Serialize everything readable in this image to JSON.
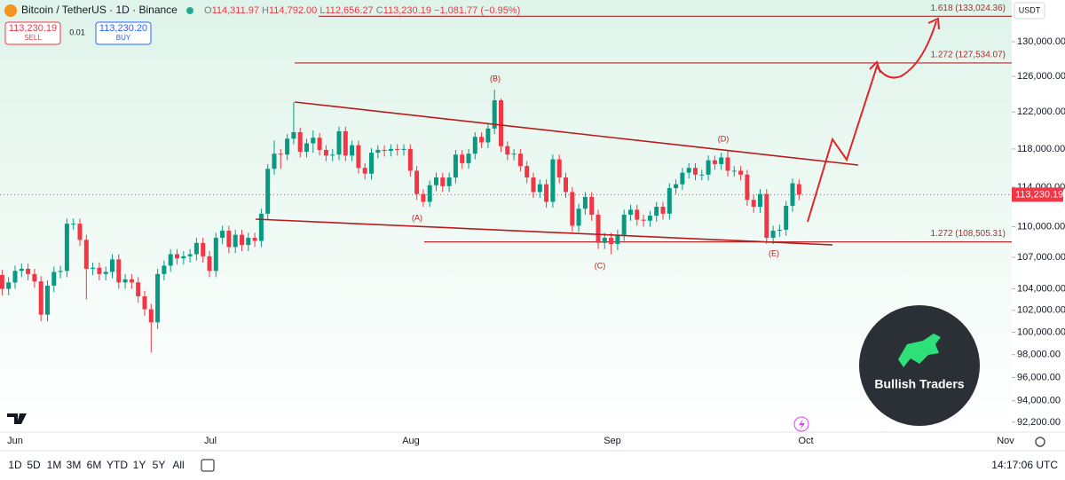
{
  "header": {
    "symbol": "Bitcoin / TetherUS · 1D · Binance",
    "ohlc": [
      [
        "O",
        "114,311.97"
      ],
      [
        "H",
        "114,792.00"
      ],
      [
        "L",
        "112,656.27"
      ],
      [
        "C",
        "113,230.19"
      ]
    ],
    "change": "−1,081.77 (−0.95%)"
  },
  "trade": {
    "sell_price": "113,230.19",
    "sell": "SELL",
    "spread": "0.01",
    "buy_price": "113,230.20",
    "buy": "BUY"
  },
  "chart_data": {
    "type": "candlestick",
    "log_scale": true,
    "colors": {
      "up": "#089981",
      "down": "#f23645"
    },
    "open": [
      105300,
      104000,
      104600,
      105700,
      105900,
      105400,
      104700,
      101600,
      104300,
      105600,
      105700,
      110300,
      110300,
      108700,
      105900,
      106000,
      105400,
      105600,
      106800,
      104600,
      104900,
      104600,
      103300,
      102100,
      100900,
      105400,
      106200,
      107300,
      106900,
      107100,
      107300,
      108400,
      107100,
      105700,
      108900,
      109600,
      108000,
      109200,
      108200,
      108900,
      108600,
      111300,
      115900,
      117500,
      117400,
      119100,
      119800,
      117700,
      118600,
      119200,
      117900,
      117300,
      117400,
      119900,
      117300,
      118400,
      116000,
      115400,
      117600,
      117900,
      117800,
      118000,
      117900,
      118000,
      115700,
      113300,
      112500,
      114200,
      115000,
      114100,
      115000,
      117400,
      116500,
      117500,
      119300,
      118700,
      120200,
      123300,
      118300,
      117400,
      117500,
      116200,
      115000,
      113500,
      114300,
      112500,
      116900,
      115000,
      113500,
      110100,
      111800,
      113000,
      111200,
      108400,
      108900,
      108300,
      109200,
      111200,
      111700,
      110700,
      110600,
      111100,
      112000,
      111300,
      113900,
      114300,
      115500,
      116000,
      115300,
      115300,
      116800,
      116400,
      117100,
      115700,
      115700,
      115300,
      112700,
      112000,
      113300,
      108900,
      109600,
      109700,
      112100,
      114311.97
    ],
    "high": [
      105800,
      105100,
      106200,
      106400,
      106400,
      105900,
      105200,
      104800,
      106100,
      106200,
      110800,
      110800,
      110800,
      109200,
      106500,
      106500,
      106100,
      107300,
      107300,
      105400,
      105400,
      105100,
      103800,
      102600,
      105900,
      106700,
      107800,
      107800,
      107600,
      107800,
      108900,
      108900,
      107600,
      109400,
      110100,
      110100,
      109700,
      109700,
      109400,
      109400,
      111800,
      116400,
      118900,
      118000,
      119600,
      123100,
      120300,
      119100,
      120000,
      119700,
      118400,
      118000,
      120400,
      120400,
      118900,
      118900,
      116500,
      118100,
      118400,
      118400,
      118500,
      118500,
      118500,
      118500,
      116200,
      113800,
      114700,
      115500,
      115500,
      115500,
      117900,
      117900,
      118000,
      119800,
      119800,
      120700,
      124500,
      123500,
      118800,
      118000,
      118000,
      116700,
      115500,
      114800,
      114800,
      117400,
      117400,
      115500,
      114000,
      112300,
      113500,
      113500,
      111700,
      109400,
      109400,
      109700,
      111700,
      112200,
      112200,
      111200,
      111600,
      112500,
      112500,
      114400,
      114800,
      116000,
      116500,
      116500,
      115800,
      117300,
      117300,
      117600,
      117900,
      116200,
      116200,
      115800,
      113200,
      113800,
      113800,
      110100,
      110200,
      112600,
      114900,
      114792
    ],
    "low": [
      103400,
      103400,
      104000,
      105100,
      104800,
      104100,
      101000,
      101000,
      103700,
      105000,
      105100,
      109700,
      108100,
      103000,
      105300,
      104800,
      104800,
      105000,
      104000,
      104000,
      104000,
      102700,
      101500,
      98200,
      100300,
      104800,
      105600,
      106300,
      106300,
      106500,
      106700,
      106500,
      105100,
      105100,
      108300,
      107400,
      107400,
      107600,
      107600,
      108000,
      108000,
      110700,
      115300,
      115900,
      116800,
      118500,
      117100,
      117100,
      117600,
      117300,
      116700,
      116700,
      116800,
      116700,
      116700,
      115400,
      114800,
      114800,
      117000,
      117200,
      117200,
      117300,
      117300,
      115100,
      112700,
      112000,
      112000,
      113600,
      113500,
      113500,
      114400,
      115900,
      115900,
      116900,
      118100,
      118100,
      119600,
      117700,
      116800,
      116800,
      115600,
      114400,
      112900,
      112900,
      111900,
      111900,
      114400,
      112900,
      109500,
      109500,
      111200,
      110600,
      107800,
      107800,
      107300,
      107700,
      108600,
      110600,
      110100,
      110000,
      110000,
      110500,
      110700,
      110700,
      113300,
      113700,
      114900,
      114700,
      114700,
      114700,
      115800,
      115800,
      115100,
      115100,
      114700,
      112100,
      111400,
      111400,
      108300,
      108300,
      109000,
      109100,
      111500,
      112656.27
    ],
    "close": [
      104000,
      104600,
      105700,
      105900,
      105400,
      104700,
      101600,
      104300,
      105600,
      105700,
      110300,
      110300,
      108700,
      105900,
      106000,
      105400,
      105600,
      106800,
      104600,
      104900,
      104600,
      103300,
      102100,
      100900,
      105400,
      106200,
      107300,
      106900,
      107100,
      107300,
      108400,
      107100,
      105700,
      108900,
      109600,
      108000,
      109200,
      108200,
      108900,
      108600,
      111300,
      115900,
      117500,
      117400,
      119100,
      119800,
      117700,
      118600,
      119200,
      117900,
      117300,
      117400,
      119900,
      117300,
      118400,
      116000,
      115400,
      117600,
      117900,
      117800,
      118000,
      117900,
      118000,
      115700,
      113300,
      112500,
      114200,
      115000,
      114100,
      115000,
      117400,
      116500,
      117500,
      119300,
      118700,
      120200,
      123300,
      118300,
      117400,
      117500,
      116200,
      115000,
      113500,
      114300,
      112500,
      116900,
      115000,
      113500,
      110100,
      111800,
      113000,
      111200,
      108400,
      108900,
      108300,
      109200,
      111200,
      111700,
      110700,
      110600,
      111100,
      112000,
      111300,
      113900,
      114300,
      115500,
      116000,
      115300,
      115300,
      116800,
      116400,
      117100,
      115700,
      115700,
      115300,
      112700,
      112000,
      113300,
      108900,
      109600,
      109700,
      112100,
      114400,
      113230.19
    ],
    "ylim": [
      91380,
      134990
    ],
    "yticks": [
      {
        "value": 130000,
        "label": "130,000.00"
      },
      {
        "value": 126000,
        "label": "126,000.00"
      },
      {
        "value": 122000,
        "label": "122,000.00"
      },
      {
        "value": 118000,
        "label": "118,000.00"
      },
      {
        "value": 114000,
        "label": "114,000.00"
      },
      {
        "value": 110000,
        "label": "110,000.00"
      },
      {
        "value": 107000,
        "label": "107,000.00"
      },
      {
        "value": 104000,
        "label": "104,000.00"
      },
      {
        "value": 102000,
        "label": "102,000.00"
      },
      {
        "value": 100000,
        "label": "100,000.00"
      },
      {
        "value": 98000,
        "label": "98,000.00"
      },
      {
        "value": 96000,
        "label": "96,000.00"
      },
      {
        "value": 94000,
        "label": "94,000.00"
      },
      {
        "value": 92200,
        "label": "92,200.00"
      }
    ],
    "x_labels": [
      "Jun",
      "Jul",
      "Aug",
      "Sep",
      "Oct",
      "Nov"
    ],
    "currency": "USDT",
    "last_price": {
      "value": 113230.19,
      "label": "113,230.19"
    },
    "levels": [
      {
        "value": 133024.36,
        "label": "1.618 (133,024.36)"
      },
      {
        "value": 127534.07,
        "label": "1.272 (127,534.07)"
      },
      {
        "value": 108505.31,
        "label": "1.272 (108,505.31)"
      }
    ],
    "waves": [
      "(A)",
      "(B)",
      "(C)",
      "(D)",
      "(E)"
    ]
  },
  "logo": {
    "name": "Bullish Traders"
  },
  "toolbar": {
    "ranges": [
      "1D",
      "5D",
      "1M",
      "3M",
      "6M",
      "YTD",
      "1Y",
      "5Y",
      "All"
    ],
    "time": "14:17:06 UTC"
  }
}
